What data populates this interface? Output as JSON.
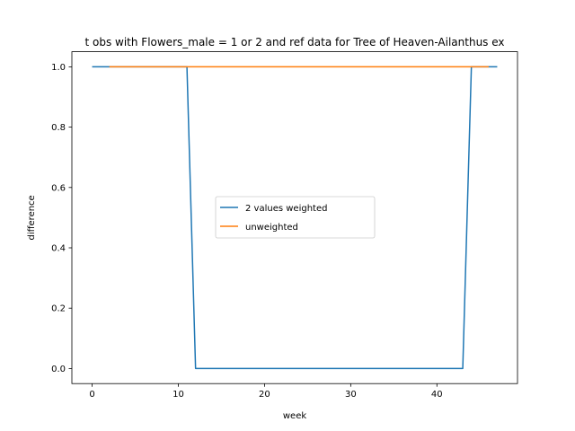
{
  "chart_data": {
    "type": "line",
    "title": "t obs with Flowers_male = 1 or 2 and ref data for Tree of Heaven-Ailanthus ex",
    "xlabel": "week",
    "ylabel": "difference",
    "xlim": [
      -2.35,
      49.35
    ],
    "ylim": [
      -0.05,
      1.05
    ],
    "xticks": [
      0,
      10,
      20,
      30,
      40
    ],
    "yticks": [
      0.0,
      0.2,
      0.4,
      0.6,
      0.8,
      1.0
    ],
    "xtick_labels": [
      "0",
      "10",
      "20",
      "30",
      "40"
    ],
    "ytick_labels": [
      "0.0",
      "0.2",
      "0.4",
      "0.6",
      "0.8",
      "1.0"
    ],
    "grid": false,
    "legend_location": "center-left",
    "series": [
      {
        "name": "2 values weighted",
        "color": "#1f77b4",
        "x": [
          0,
          11,
          12,
          43,
          44,
          47
        ],
        "y": [
          1.0,
          1.0,
          0.0,
          0.0,
          1.0,
          1.0
        ]
      },
      {
        "name": "unweighted",
        "color": "#ff7f0e",
        "x": [
          2,
          46
        ],
        "y": [
          1.0,
          1.0
        ]
      }
    ]
  }
}
